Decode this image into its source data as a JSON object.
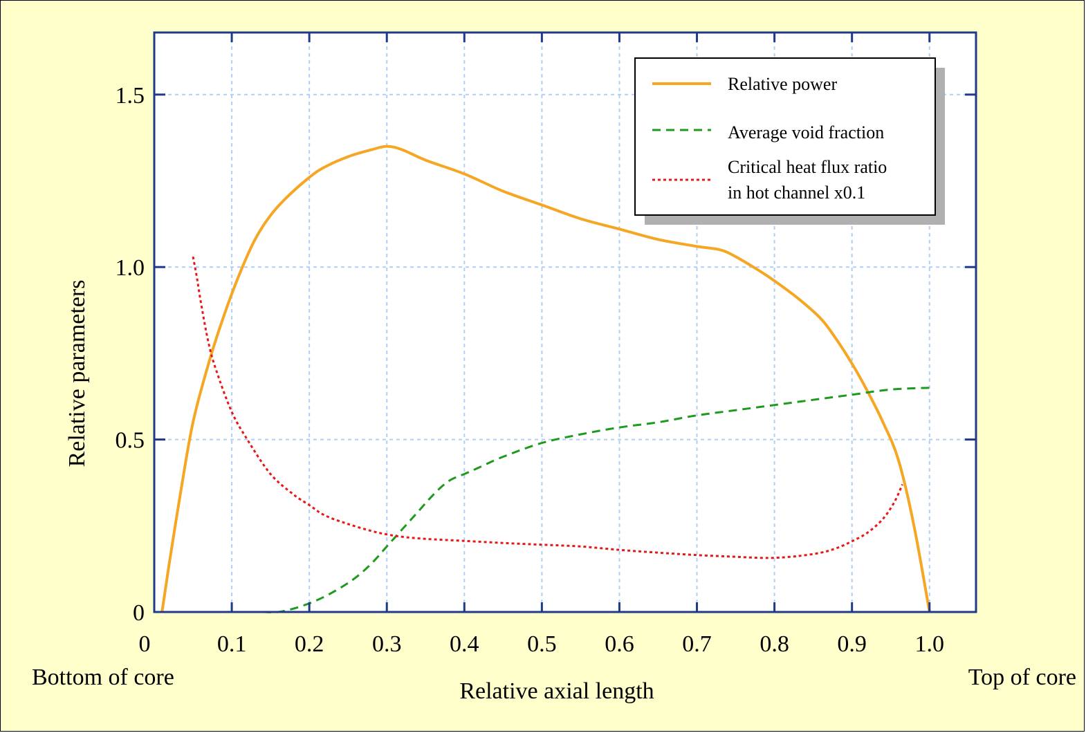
{
  "colors": {
    "background": "#FFFFCC",
    "axis": "#1F3A8A",
    "grid": "#AFCFF5",
    "power": "#F5A623",
    "void": "#1E9A1E",
    "chf": "#E81818",
    "shadow": "#B0B0B0"
  },
  "chart_data": {
    "type": "line",
    "title": "",
    "xlabel": "Relative axial length",
    "ylabel": "Relative parameters",
    "x_ticks": [
      "0",
      "0.1",
      "0.2",
      "0.3",
      "0.4",
      "0.5",
      "0.6",
      "0.7",
      "0.8",
      "0.9",
      "1.0"
    ],
    "y_ticks": [
      "0",
      "0.5",
      "1.0",
      "1.5"
    ],
    "xlim": [
      0,
      1.06
    ],
    "ylim": [
      0,
      1.68
    ],
    "annotations": {
      "left": "Bottom of core",
      "right": "Top of core"
    },
    "grid": true,
    "legend_position": "top-right",
    "series": [
      {
        "name": "Relative power",
        "style": "solid",
        "color_key": "power",
        "x": [
          0.01,
          0.02,
          0.035,
          0.05,
          0.07,
          0.09,
          0.11,
          0.13,
          0.15,
          0.17,
          0.2,
          0.22,
          0.25,
          0.28,
          0.3,
          0.32,
          0.35,
          0.4,
          0.45,
          0.5,
          0.55,
          0.6,
          0.65,
          0.7,
          0.73,
          0.75,
          0.78,
          0.8,
          0.83,
          0.86,
          0.88,
          0.9,
          0.92,
          0.94,
          0.96,
          0.98,
          1.0
        ],
        "y": [
          0.0,
          0.15,
          0.36,
          0.55,
          0.72,
          0.86,
          0.98,
          1.08,
          1.15,
          1.2,
          1.26,
          1.29,
          1.32,
          1.34,
          1.35,
          1.34,
          1.31,
          1.27,
          1.22,
          1.18,
          1.14,
          1.11,
          1.08,
          1.06,
          1.05,
          1.03,
          0.99,
          0.96,
          0.91,
          0.85,
          0.79,
          0.72,
          0.64,
          0.55,
          0.44,
          0.25,
          0.0
        ]
      },
      {
        "name": "Average void fraction",
        "style": "dashed",
        "color_key": "void",
        "x": [
          0.14,
          0.16,
          0.18,
          0.2,
          0.22,
          0.24,
          0.26,
          0.28,
          0.3,
          0.32,
          0.34,
          0.36,
          0.38,
          0.4,
          0.42,
          0.45,
          0.5,
          0.55,
          0.6,
          0.65,
          0.7,
          0.75,
          0.8,
          0.85,
          0.9,
          0.95,
          1.0
        ],
        "y": [
          0.0,
          0.0,
          0.01,
          0.025,
          0.045,
          0.07,
          0.1,
          0.14,
          0.19,
          0.24,
          0.29,
          0.34,
          0.38,
          0.4,
          0.42,
          0.45,
          0.49,
          0.515,
          0.535,
          0.55,
          0.57,
          0.585,
          0.6,
          0.615,
          0.63,
          0.645,
          0.65
        ]
      },
      {
        "name": "Critical heat flux ratio in hot channel x0.1",
        "legend_lines": [
          "Critical heat flux ratio",
          "in hot channel x0.1"
        ],
        "style": "dotted",
        "color_key": "chf",
        "x": [
          0.05,
          0.055,
          0.06,
          0.07,
          0.08,
          0.1,
          0.12,
          0.15,
          0.18,
          0.2,
          0.22,
          0.25,
          0.28,
          0.3,
          0.32,
          0.35,
          0.4,
          0.45,
          0.5,
          0.55,
          0.6,
          0.65,
          0.7,
          0.75,
          0.78,
          0.8,
          0.83,
          0.86,
          0.88,
          0.9,
          0.92,
          0.94,
          0.955,
          0.965
        ],
        "y": [
          1.03,
          0.97,
          0.9,
          0.78,
          0.7,
          0.58,
          0.5,
          0.4,
          0.34,
          0.31,
          0.28,
          0.255,
          0.235,
          0.225,
          0.218,
          0.212,
          0.206,
          0.2,
          0.195,
          0.19,
          0.18,
          0.172,
          0.165,
          0.16,
          0.157,
          0.157,
          0.162,
          0.172,
          0.185,
          0.205,
          0.23,
          0.27,
          0.32,
          0.37
        ]
      }
    ]
  }
}
